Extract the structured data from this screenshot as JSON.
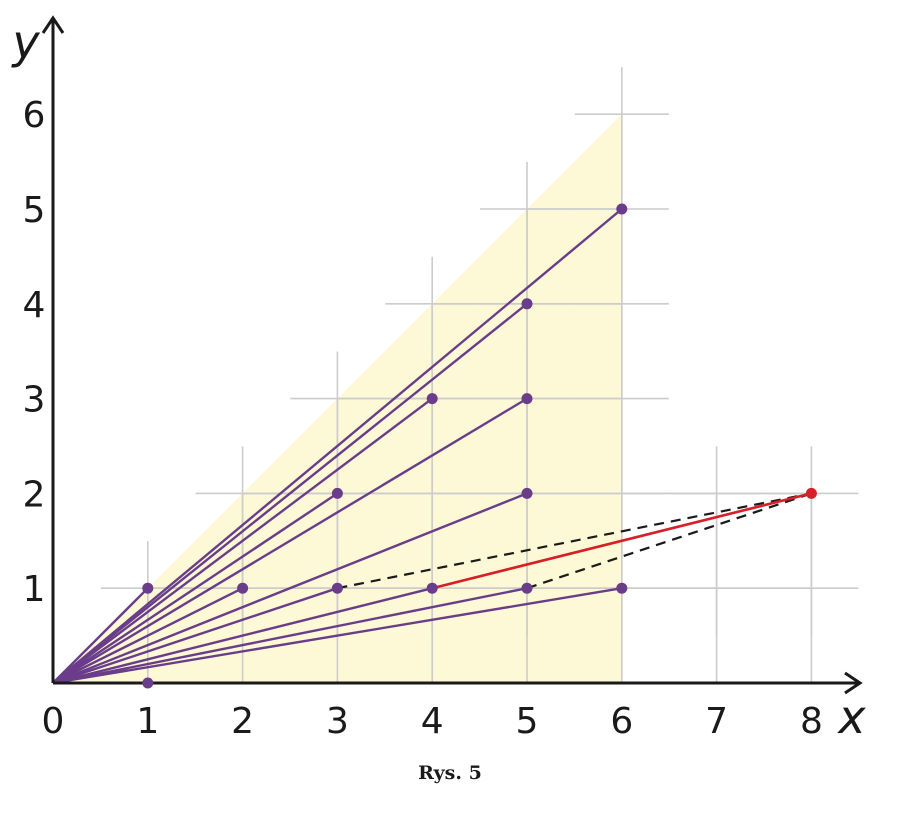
{
  "figure": {
    "caption": "Rys. 5",
    "x_axis_label": "x",
    "y_axis_label": "y",
    "x_ticks": [
      "0",
      "1",
      "2",
      "3",
      "4",
      "5",
      "6",
      "7",
      "8"
    ],
    "y_ticks": [
      "1",
      "2",
      "3",
      "4",
      "5",
      "6"
    ],
    "origin": [
      0,
      0
    ],
    "shaded_region": {
      "vertices": [
        [
          0,
          0
        ],
        [
          6,
          6
        ],
        [
          6,
          0
        ]
      ],
      "color": "#fdf9d6"
    },
    "grid_crosses": [
      [
        1,
        1
      ],
      [
        2,
        1
      ],
      [
        3,
        1
      ],
      [
        4,
        1
      ],
      [
        5,
        1
      ],
      [
        6,
        1
      ],
      [
        7,
        1
      ],
      [
        8,
        1
      ],
      [
        2,
        2
      ],
      [
        3,
        2
      ],
      [
        4,
        2
      ],
      [
        5,
        2
      ],
      [
        6,
        2
      ],
      [
        7,
        2
      ],
      [
        8,
        2
      ],
      [
        3,
        3
      ],
      [
        4,
        3
      ],
      [
        5,
        3
      ],
      [
        6,
        3
      ],
      [
        4,
        4
      ],
      [
        5,
        4
      ],
      [
        6,
        4
      ],
      [
        5,
        5
      ],
      [
        6,
        5
      ],
      [
        6,
        6
      ]
    ],
    "purple_points": [
      [
        1,
        1
      ],
      [
        2,
        1
      ],
      [
        3,
        1
      ],
      [
        4,
        1
      ],
      [
        5,
        1
      ],
      [
        6,
        1
      ],
      [
        1,
        0
      ],
      [
        3,
        2
      ],
      [
        5,
        2
      ],
      [
        4,
        3
      ],
      [
        5,
        3
      ],
      [
        5,
        4
      ],
      [
        6,
        5
      ]
    ],
    "rays_from_origin": [
      [
        1,
        1
      ],
      [
        6,
        5
      ],
      [
        5,
        4
      ],
      [
        4,
        3
      ],
      [
        3,
        2
      ],
      [
        5,
        3
      ],
      [
        5,
        2
      ],
      [
        2,
        1
      ],
      [
        3,
        1
      ],
      [
        4,
        1
      ],
      [
        5,
        1
      ],
      [
        6,
        1
      ],
      [
        1,
        0
      ]
    ],
    "red_point": [
      8,
      2
    ],
    "red_segment": [
      [
        4,
        1
      ],
      [
        8,
        2
      ]
    ],
    "dashed_segments": [
      [
        [
          3,
          1
        ],
        [
          8,
          2
        ]
      ],
      [
        [
          5,
          1
        ],
        [
          8,
          2
        ]
      ]
    ],
    "colors": {
      "purple": "#6a3d8a",
      "red": "#d42026",
      "grid": "#cccccc",
      "axis": "#1a1a1a",
      "dashed": "#1a1a1a",
      "shade": "#fdf9d6"
    }
  }
}
